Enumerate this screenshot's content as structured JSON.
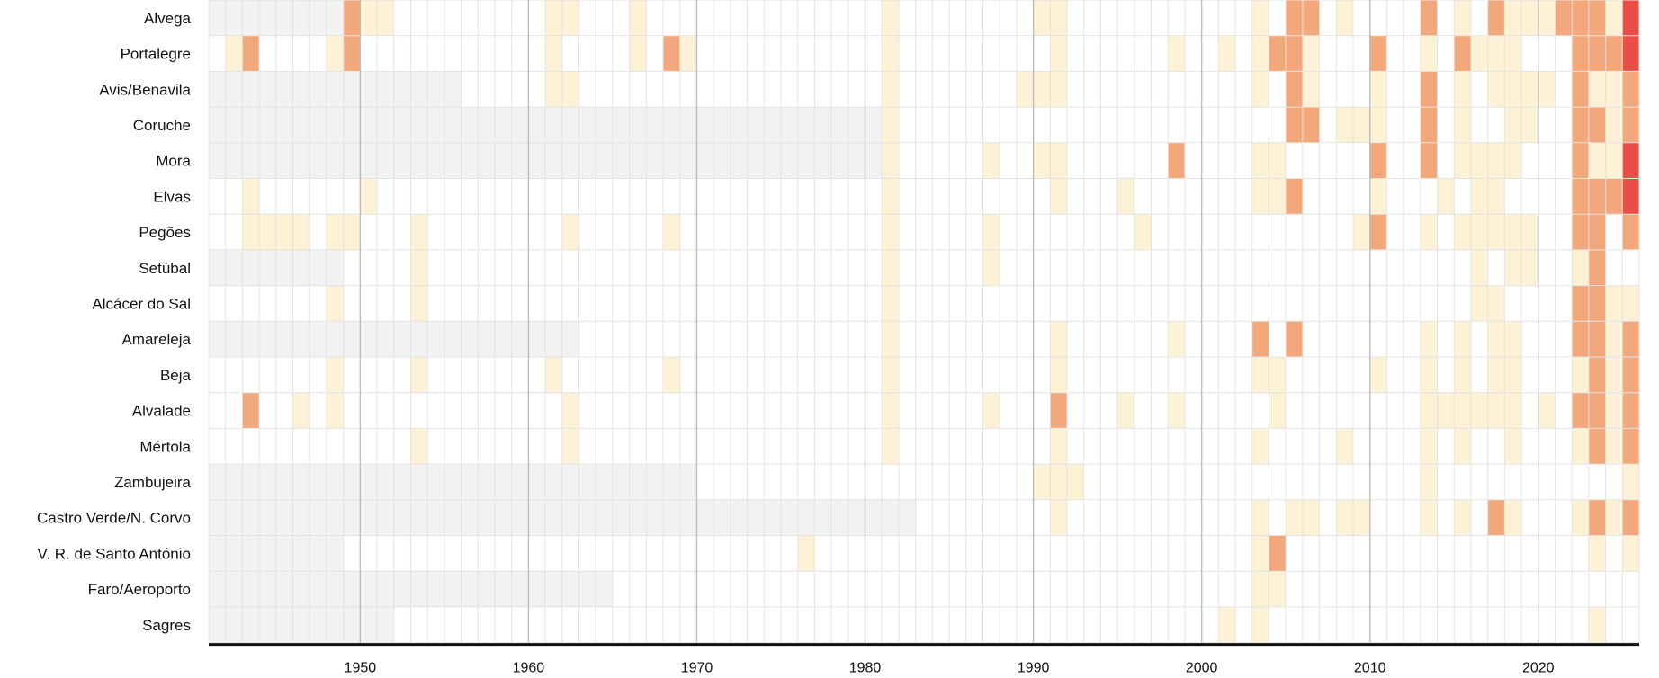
{
  "chart_data": {
    "type": "heatmap",
    "title": "",
    "xlabel": "",
    "ylabel": "",
    "x_start": 1941,
    "x_end": 2025,
    "xlim": [
      1941,
      2026
    ],
    "x_ticks": [
      1950,
      1960,
      1970,
      1980,
      1990,
      2000,
      2010,
      2020
    ],
    "x_tick_labels": [
      "1950",
      "1960",
      "1970",
      "1980",
      "1990",
      "2000",
      "2010",
      "2020"
    ],
    "levels": {
      "0": "#ffffff",
      "1": "#fdf1d6",
      "2": "#f3a87b",
      "3": "#ec4e45",
      "nodata": "#f2f2f2"
    },
    "rows": [
      {
        "name": "Alvega",
        "nodata": [
          [
            1941,
            1948
          ]
        ],
        "cells": {
          "1949": 2,
          "1950": 1,
          "1951": 1,
          "1961": 1,
          "1962": 1,
          "1966": 1,
          "1981": 1,
          "1990": 1,
          "1991": 1,
          "2003": 1,
          "2005": 2,
          "2006": 2,
          "2008": 1,
          "2013": 2,
          "2015": 1,
          "2017": 2,
          "2018": 1,
          "2019": 1,
          "2020": 1,
          "2021": 2,
          "2022": 2,
          "2023": 2,
          "2024": 1,
          "2025": 3
        }
      },
      {
        "name": "Portalegre",
        "nodata": [],
        "cells": {
          "1942": 1,
          "1943": 2,
          "1948": 1,
          "1949": 2,
          "1961": 1,
          "1966": 1,
          "1968": 2,
          "1969": 1,
          "1981": 1,
          "1991": 1,
          "1998": 1,
          "2001": 1,
          "2003": 1,
          "2004": 2,
          "2005": 2,
          "2006": 1,
          "2010": 2,
          "2013": 1,
          "2015": 2,
          "2016": 1,
          "2017": 1,
          "2018": 1,
          "2022": 2,
          "2023": 2,
          "2024": 2,
          "2025": 3
        }
      },
      {
        "name": "Avis/Benavila",
        "nodata": [
          [
            1941,
            1955
          ]
        ],
        "cells": {
          "1961": 1,
          "1962": 1,
          "1981": 1,
          "1989": 1,
          "1990": 1,
          "1991": 1,
          "2003": 1,
          "2005": 2,
          "2006": 1,
          "2010": 1,
          "2013": 2,
          "2015": 1,
          "2017": 1,
          "2018": 1,
          "2019": 1,
          "2020": 1,
          "2022": 2,
          "2023": 1,
          "2024": 1,
          "2025": 2
        }
      },
      {
        "name": "Coruche",
        "nodata": [
          [
            1941,
            1981
          ]
        ],
        "cells": {
          "1981": 1,
          "2005": 2,
          "2006": 2,
          "2008": 1,
          "2009": 1,
          "2010": 1,
          "2013": 2,
          "2015": 1,
          "2018": 1,
          "2019": 1,
          "2022": 2,
          "2023": 2,
          "2024": 1,
          "2025": 2
        }
      },
      {
        "name": "Mora",
        "nodata": [
          [
            1941,
            1980
          ]
        ],
        "cells": {
          "1981": 1,
          "1987": 1,
          "1990": 1,
          "1991": 1,
          "1998": 2,
          "2003": 1,
          "2004": 1,
          "2010": 2,
          "2013": 2,
          "2015": 1,
          "2016": 1,
          "2017": 1,
          "2018": 1,
          "2022": 2,
          "2023": 1,
          "2024": 1,
          "2025": 3
        }
      },
      {
        "name": "Elvas",
        "nodata": [],
        "cells": {
          "1943": 1,
          "1950": 1,
          "1981": 1,
          "1991": 1,
          "1995": 1,
          "2003": 1,
          "2004": 1,
          "2005": 2,
          "2010": 1,
          "2014": 1,
          "2016": 1,
          "2017": 1,
          "2022": 2,
          "2023": 2,
          "2024": 2,
          "2025": 3
        }
      },
      {
        "name": "Pegões",
        "nodata": [],
        "cells": {
          "1943": 1,
          "1944": 1,
          "1945": 1,
          "1946": 1,
          "1948": 1,
          "1949": 1,
          "1953": 1,
          "1962": 1,
          "1968": 1,
          "1981": 1,
          "1987": 1,
          "1996": 1,
          "2009": 1,
          "2010": 2,
          "2013": 1,
          "2015": 1,
          "2016": 1,
          "2017": 1,
          "2018": 1,
          "2019": 1,
          "2022": 2,
          "2023": 2,
          "2025": 2
        }
      },
      {
        "name": "Setúbal",
        "nodata": [
          [
            1941,
            1948
          ]
        ],
        "cells": {
          "1953": 1,
          "1981": 1,
          "1987": 1,
          "2016": 1,
          "2018": 1,
          "2019": 1,
          "2022": 1,
          "2023": 2
        }
      },
      {
        "name": "Alcácer do Sal",
        "nodata": [],
        "cells": {
          "1948": 1,
          "1953": 1,
          "1981": 1,
          "2016": 1,
          "2017": 1,
          "2022": 2,
          "2023": 2,
          "2024": 1,
          "2025": 1
        }
      },
      {
        "name": "Amareleja",
        "nodata": [
          [
            1941,
            1962
          ]
        ],
        "cells": {
          "1981": 1,
          "1991": 1,
          "1998": 1,
          "2003": 2,
          "2005": 2,
          "2013": 1,
          "2015": 1,
          "2017": 1,
          "2018": 1,
          "2022": 2,
          "2023": 2,
          "2024": 1,
          "2025": 2
        }
      },
      {
        "name": "Beja",
        "nodata": [],
        "cells": {
          "1948": 1,
          "1953": 1,
          "1961": 1,
          "1968": 1,
          "1981": 1,
          "1991": 1,
          "2003": 1,
          "2004": 1,
          "2010": 1,
          "2013": 1,
          "2015": 1,
          "2017": 1,
          "2018": 1,
          "2022": 1,
          "2023": 2,
          "2024": 1,
          "2025": 2
        }
      },
      {
        "name": "Alvalade",
        "nodata": [],
        "cells": {
          "1943": 2,
          "1946": 1,
          "1948": 1,
          "1962": 1,
          "1981": 1,
          "1987": 1,
          "1991": 2,
          "1995": 1,
          "1998": 1,
          "2004": 1,
          "2013": 1,
          "2014": 1,
          "2015": 1,
          "2016": 1,
          "2017": 1,
          "2018": 1,
          "2020": 1,
          "2022": 2,
          "2023": 2,
          "2024": 1,
          "2025": 2
        }
      },
      {
        "name": "Mértola",
        "nodata": [],
        "cells": {
          "1953": 1,
          "1962": 1,
          "1981": 1,
          "1991": 1,
          "2003": 1,
          "2008": 1,
          "2013": 1,
          "2015": 1,
          "2018": 1,
          "2022": 1,
          "2023": 2,
          "2024": 1,
          "2025": 2
        }
      },
      {
        "name": "Zambujeira",
        "nodata": [
          [
            1941,
            1969
          ]
        ],
        "cells": {
          "1990": 1,
          "1991": 1,
          "1992": 1,
          "2013": 1,
          "2025": 1
        }
      },
      {
        "name": "Castro Verde/N. Corvo",
        "nodata": [
          [
            1941,
            1982
          ]
        ],
        "cells": {
          "1991": 1,
          "2003": 1,
          "2005": 1,
          "2006": 1,
          "2008": 1,
          "2009": 1,
          "2013": 1,
          "2015": 1,
          "2017": 2,
          "2018": 1,
          "2022": 1,
          "2023": 2,
          "2024": 1,
          "2025": 2
        }
      },
      {
        "name": "V. R. de Santo António",
        "nodata": [
          [
            1941,
            1948
          ]
        ],
        "cells": {
          "1976": 1,
          "2003": 1,
          "2004": 2,
          "2023": 1,
          "2025": 1
        }
      },
      {
        "name": "Faro/Aeroporto",
        "nodata": [
          [
            1941,
            1964
          ]
        ],
        "cells": {
          "2003": 1,
          "2004": 1
        }
      },
      {
        "name": "Sagres",
        "nodata": [
          [
            1941,
            1951
          ]
        ],
        "cells": {
          "2001": 1,
          "2003": 1,
          "2023": 1
        }
      }
    ]
  }
}
